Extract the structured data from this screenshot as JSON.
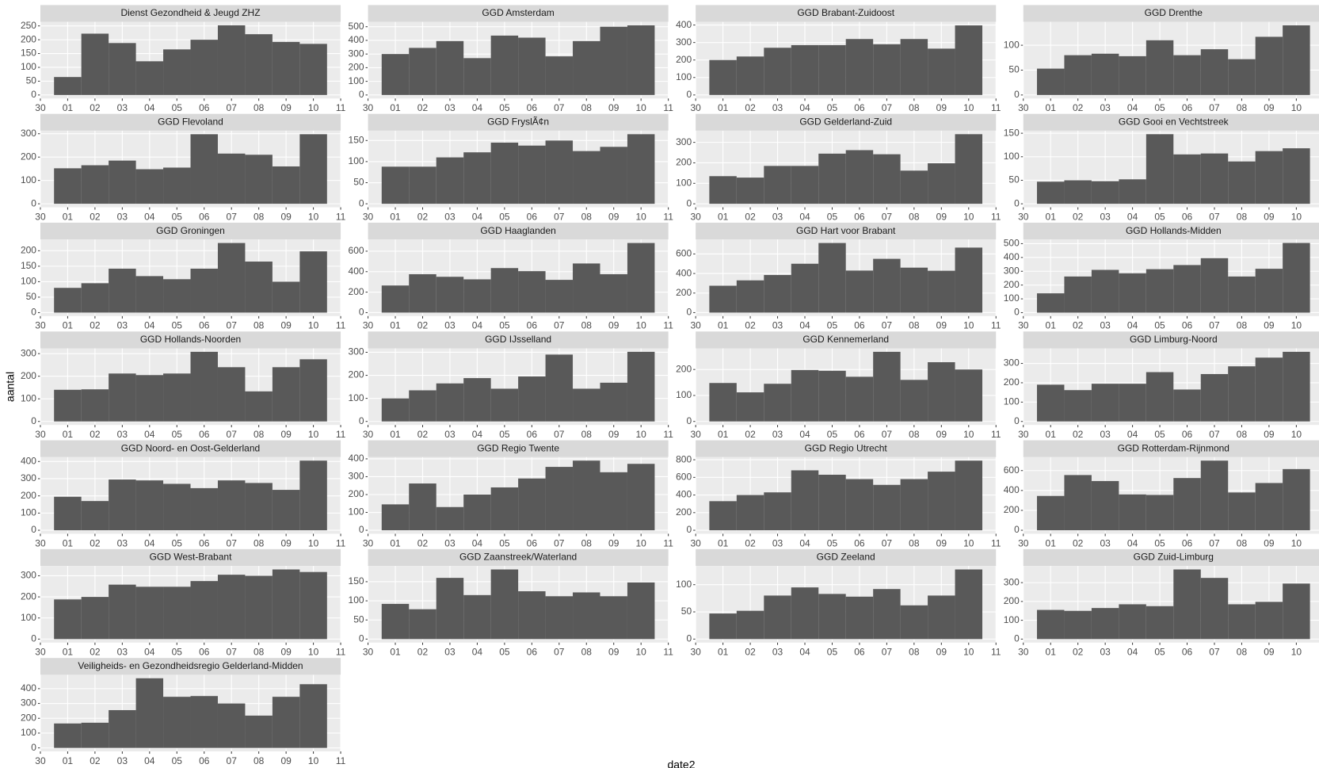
{
  "chart_data": {
    "type": "bar",
    "x_label": "date2",
    "y_label": "aantal",
    "color": "#595959",
    "grid": true,
    "xticks": [
      "30",
      "01",
      "02",
      "03",
      "04",
      "05",
      "06",
      "07",
      "08",
      "09",
      "10",
      "11"
    ],
    "panels": [
      {
        "title": "Dienst Gezondheid & Jeugd ZHZ",
        "values": [
          65,
          222,
          188,
          122,
          165,
          200,
          252,
          220,
          192,
          185
        ],
        "ylim": [
          -12.6,
          264.6
        ],
        "yticks": [
          0,
          50,
          100,
          150,
          200,
          250
        ]
      },
      {
        "title": "GGD Amsterdam",
        "values": [
          300,
          345,
          395,
          270,
          435,
          420,
          283,
          395,
          500,
          510
        ],
        "ylim": [
          -25.5,
          535.5
        ],
        "yticks": [
          0,
          100,
          200,
          300,
          400,
          500
        ]
      },
      {
        "title": "GGD Brabant-Zuidoost",
        "values": [
          200,
          220,
          270,
          285,
          285,
          320,
          290,
          320,
          265,
          398
        ],
        "ylim": [
          -20,
          418
        ],
        "yticks": [
          0,
          100,
          200,
          300,
          400
        ]
      },
      {
        "title": "GGD Drenthe",
        "values": [
          53,
          80,
          83,
          78,
          110,
          80,
          92,
          72,
          117,
          140
        ],
        "ylim": [
          -7,
          147
        ],
        "yticks": [
          0,
          50,
          100
        ]
      },
      {
        "title": "GGD Flevoland",
        "values": [
          152,
          165,
          185,
          148,
          155,
          298,
          215,
          210,
          160,
          298
        ],
        "ylim": [
          -15,
          313
        ],
        "yticks": [
          0,
          100,
          200,
          300
        ]
      },
      {
        "title": "GGD FryslÃ¢n",
        "values": [
          88,
          88,
          110,
          122,
          145,
          138,
          150,
          125,
          135,
          165
        ],
        "ylim": [
          -8.3,
          173.3
        ],
        "yticks": [
          0,
          50,
          100,
          150
        ]
      },
      {
        "title": "GGD Gelderland-Zuid",
        "values": [
          135,
          128,
          185,
          185,
          245,
          262,
          242,
          162,
          198,
          340
        ],
        "ylim": [
          -17,
          357
        ],
        "yticks": [
          0,
          100,
          200,
          300
        ]
      },
      {
        "title": "GGD Gooi en Vechtstreek",
        "values": [
          47,
          50,
          48,
          52,
          148,
          105,
          107,
          90,
          112,
          118
        ],
        "ylim": [
          -7.4,
          155.4
        ],
        "yticks": [
          0,
          50,
          100,
          150
        ]
      },
      {
        "title": "GGD Groningen",
        "values": [
          80,
          95,
          142,
          118,
          108,
          142,
          225,
          165,
          100,
          198
        ],
        "ylim": [
          -11.25,
          236.25
        ],
        "yticks": [
          0,
          50,
          100,
          150,
          200
        ]
      },
      {
        "title": "GGD Haaglanden",
        "values": [
          265,
          375,
          350,
          325,
          435,
          405,
          320,
          480,
          375,
          680
        ],
        "ylim": [
          -34,
          714
        ],
        "yticks": [
          0,
          200,
          400,
          600
        ]
      },
      {
        "title": "GGD Hart voor Brabant",
        "values": [
          275,
          330,
          385,
          500,
          712,
          430,
          550,
          460,
          428,
          665
        ],
        "ylim": [
          -35.6,
          747.6
        ],
        "yticks": [
          0,
          200,
          400,
          600
        ]
      },
      {
        "title": "GGD Hollands-Midden",
        "values": [
          140,
          262,
          310,
          285,
          315,
          345,
          395,
          262,
          318,
          505
        ],
        "ylim": [
          -25,
          530
        ],
        "yticks": [
          0,
          100,
          200,
          300,
          400,
          500
        ]
      },
      {
        "title": "GGD Hollands-Noorden",
        "values": [
          140,
          142,
          212,
          205,
          212,
          308,
          240,
          133,
          240,
          275
        ],
        "ylim": [
          -15.4,
          323.4
        ],
        "yticks": [
          0,
          100,
          200,
          300
        ]
      },
      {
        "title": "GGD IJsselland",
        "values": [
          100,
          135,
          165,
          188,
          142,
          195,
          290,
          142,
          168,
          302
        ],
        "ylim": [
          -15.1,
          317.1
        ],
        "yticks": [
          0,
          100,
          200,
          300
        ]
      },
      {
        "title": "GGD Kennemerland",
        "values": [
          148,
          112,
          145,
          198,
          195,
          172,
          268,
          160,
          228,
          200
        ],
        "ylim": [
          -13.4,
          281.4
        ],
        "yticks": [
          0,
          100,
          200
        ]
      },
      {
        "title": "GGD Limburg-Noord",
        "values": [
          190,
          162,
          195,
          195,
          255,
          165,
          245,
          285,
          330,
          360
        ],
        "ylim": [
          -18,
          378
        ],
        "yticks": [
          0,
          100,
          200,
          300
        ]
      },
      {
        "title": "GGD Noord- en Oost-Gelderland",
        "values": [
          195,
          170,
          295,
          290,
          270,
          245,
          290,
          275,
          235,
          405
        ],
        "ylim": [
          -20.25,
          425.25
        ],
        "yticks": [
          0,
          100,
          200,
          300,
          400
        ]
      },
      {
        "title": "GGD Regio Twente",
        "values": [
          145,
          262,
          130,
          200,
          240,
          290,
          355,
          390,
          325,
          372
        ],
        "ylim": [
          -19.5,
          409.5
        ],
        "yticks": [
          0,
          100,
          200,
          300,
          400
        ]
      },
      {
        "title": "GGD Regio Utrecht",
        "values": [
          330,
          400,
          430,
          680,
          630,
          580,
          515,
          580,
          665,
          790
        ],
        "ylim": [
          -39.5,
          829.5
        ],
        "yticks": [
          0,
          200,
          400,
          600,
          800
        ]
      },
      {
        "title": "GGD Rotterdam-Rijnmond",
        "values": [
          345,
          555,
          495,
          360,
          355,
          525,
          700,
          380,
          475,
          615
        ],
        "ylim": [
          -35,
          735
        ],
        "yticks": [
          0,
          200,
          400,
          600
        ]
      },
      {
        "title": "GGD West-Brabant",
        "values": [
          188,
          200,
          258,
          248,
          248,
          275,
          305,
          300,
          330,
          318
        ],
        "ylim": [
          -16.5,
          346.5
        ],
        "yticks": [
          0,
          100,
          200,
          300
        ]
      },
      {
        "title": "GGD Zaanstreek/Waterland",
        "values": [
          92,
          78,
          160,
          115,
          182,
          125,
          112,
          122,
          112,
          148
        ],
        "ylim": [
          -9.1,
          191.1
        ],
        "yticks": [
          0,
          50,
          100,
          150
        ]
      },
      {
        "title": "GGD Zeeland",
        "values": [
          47,
          52,
          80,
          95,
          83,
          78,
          92,
          62,
          80,
          128
        ],
        "ylim": [
          -6.4,
          134.4
        ],
        "yticks": [
          0,
          50,
          100
        ]
      },
      {
        "title": "GGD Zuid-Limburg",
        "values": [
          155,
          150,
          165,
          185,
          175,
          370,
          325,
          185,
          198,
          295
        ],
        "ylim": [
          -18.5,
          388.5
        ],
        "yticks": [
          0,
          100,
          200,
          300
        ]
      },
      {
        "title": "Veiligheids- en Gezondheidsregio Gelderland-Midden",
        "values": [
          165,
          170,
          255,
          470,
          345,
          350,
          300,
          218,
          345,
          430
        ],
        "ylim": [
          -23.5,
          493.5
        ],
        "yticks": [
          0,
          100,
          200,
          300,
          400
        ]
      }
    ]
  }
}
